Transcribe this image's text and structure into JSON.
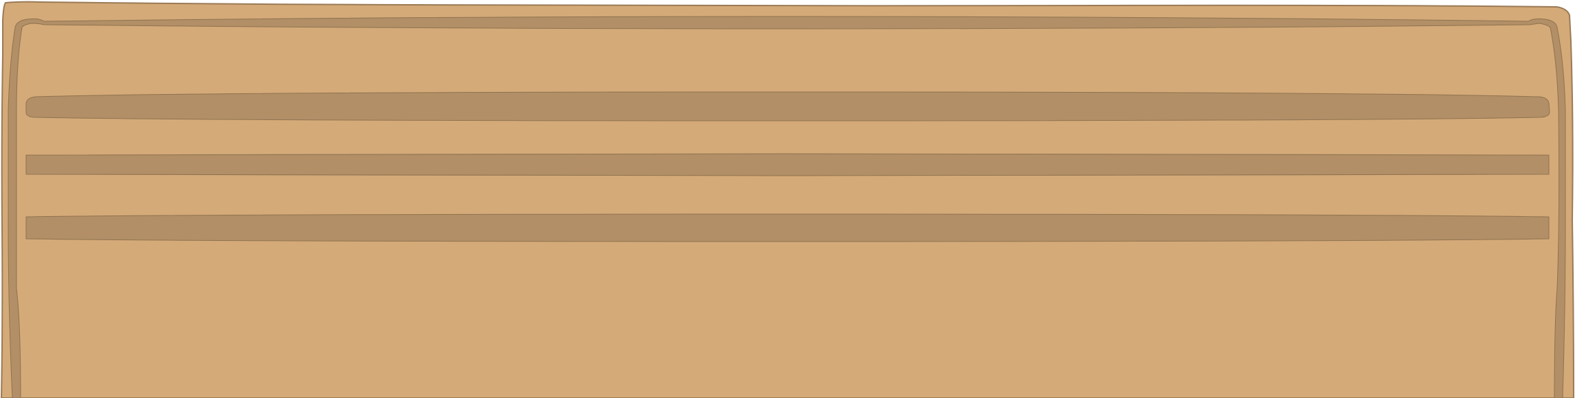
{
  "panel": {
    "colors": {
      "wood": "#d4aa78",
      "wood_dark": "#b28f66",
      "outline": "#8f7250"
    },
    "groove_count": 3
  }
}
